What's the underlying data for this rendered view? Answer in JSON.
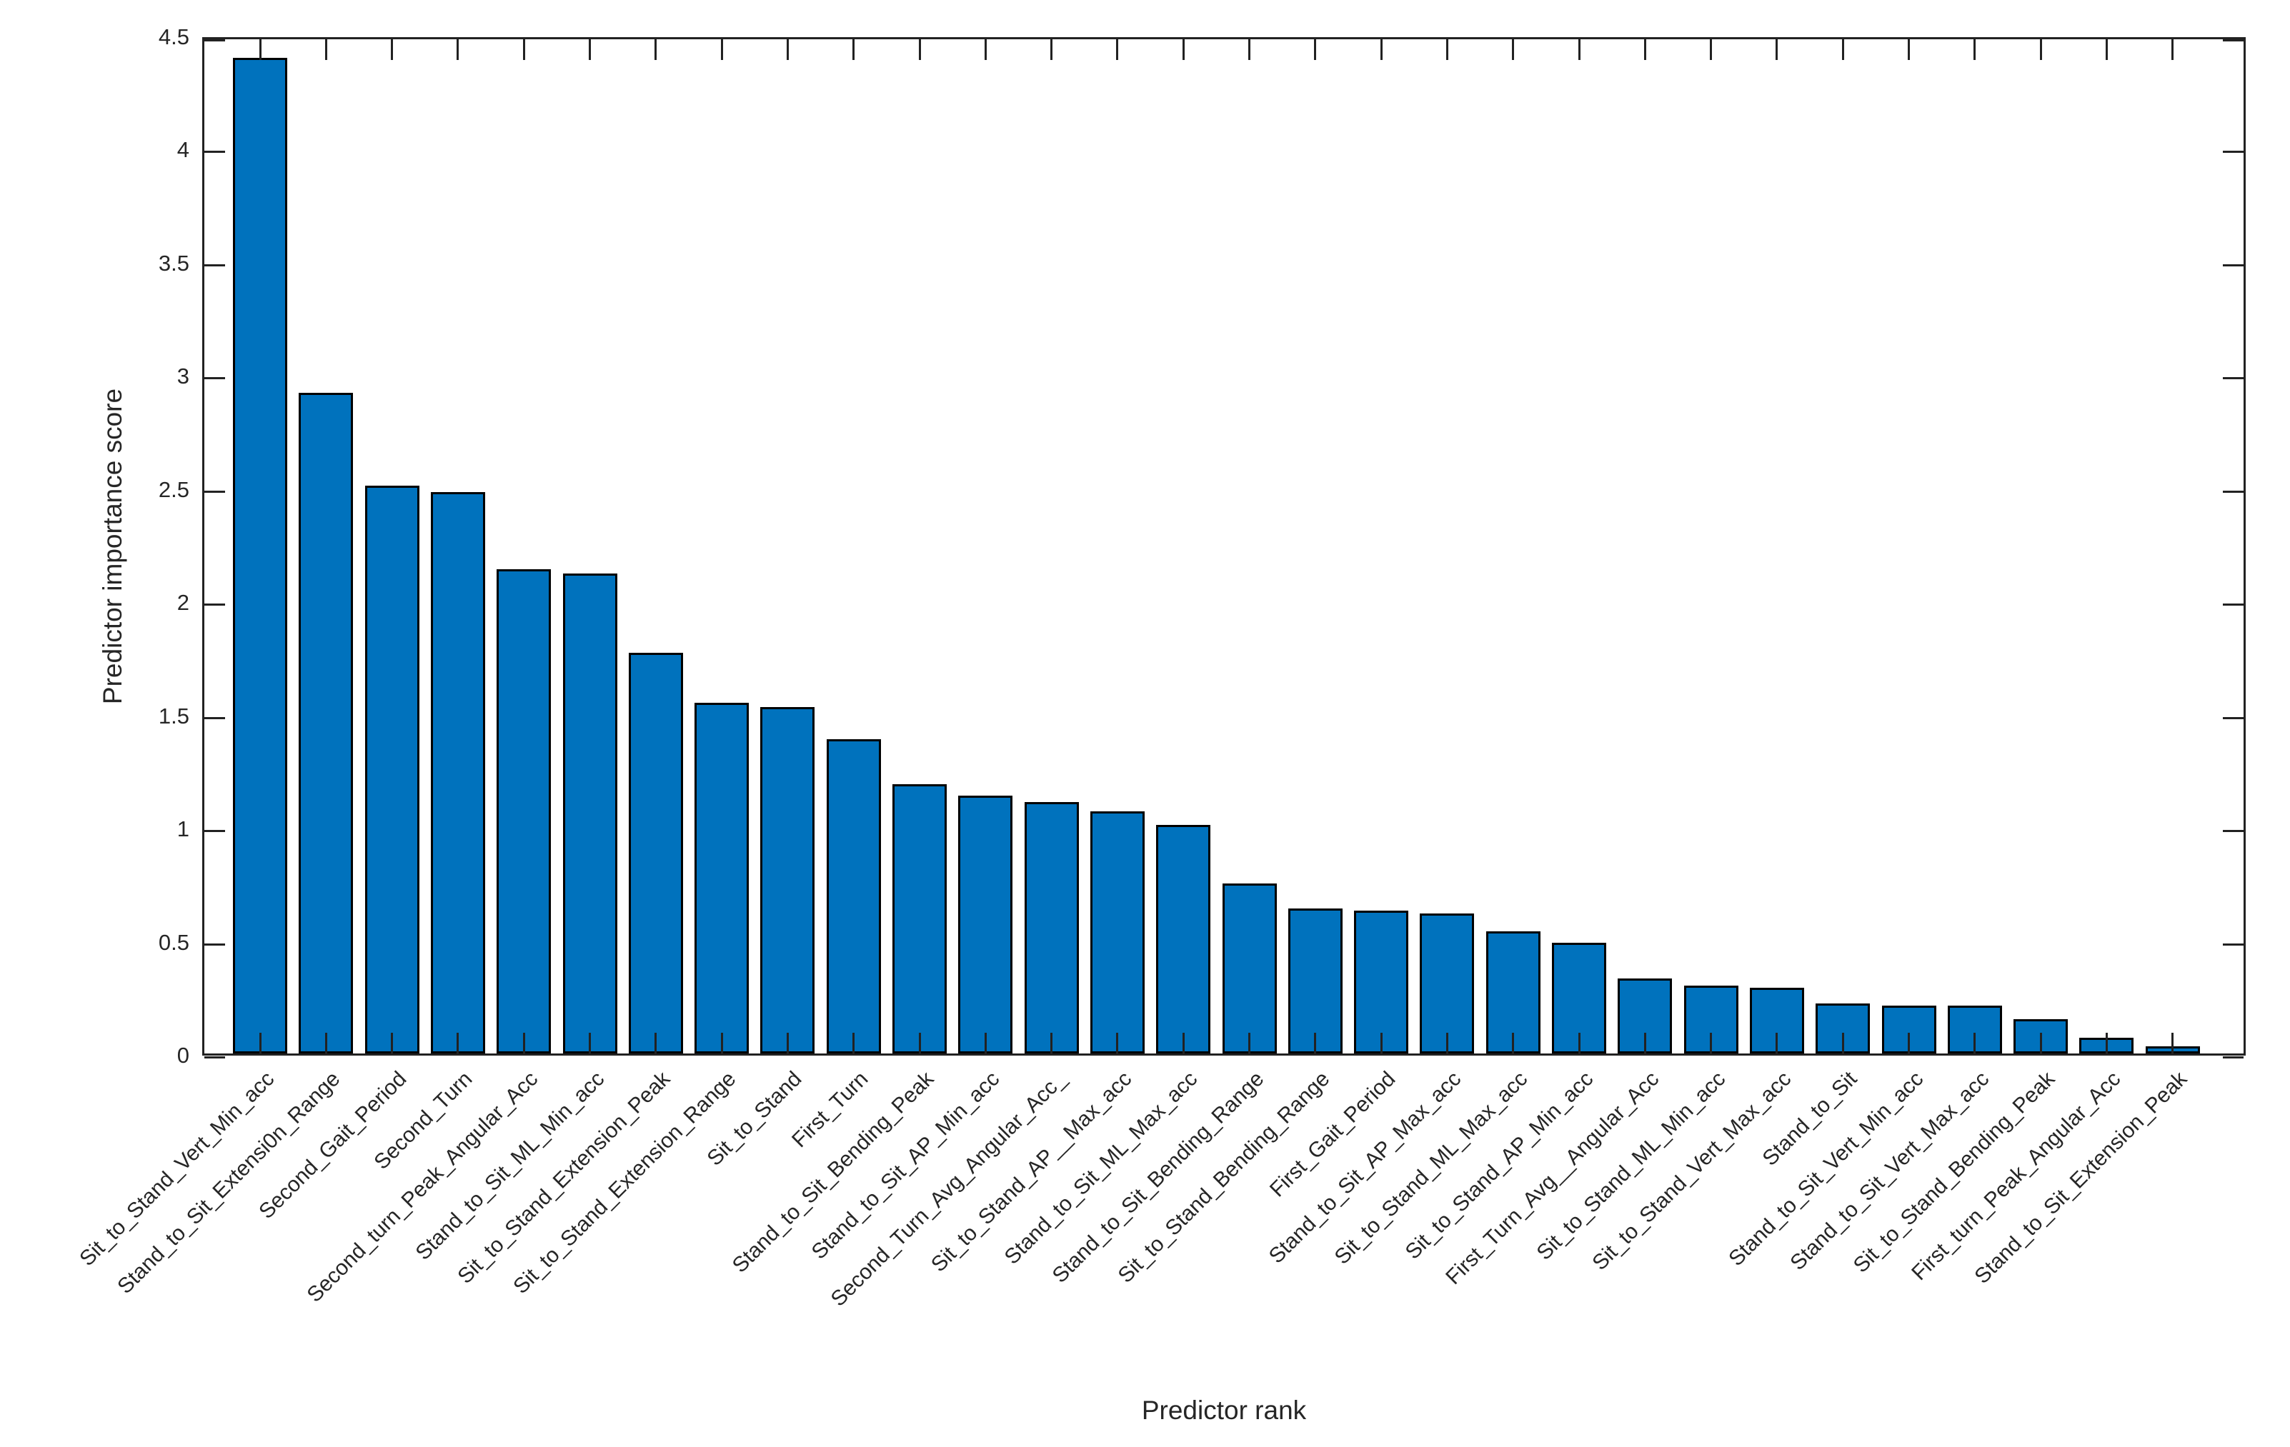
{
  "chart_data": {
    "type": "bar",
    "title": "",
    "xlabel": "Predictor rank",
    "ylabel": "Predictor importance score",
    "categories": [
      "Sit_to_Stand_Vert_Min_acc",
      "Stand_to_Sit_Extensi0n_Range",
      "Second_Gait_Period",
      "Second_Turn",
      "Second_turn_Peak_Angular_Acc",
      "Stand_to_Sit_ML_Min_acc",
      "Sit_to_Stand_Extension_Peak",
      "Sit_to_Stand_Extension_Range",
      "Sit_to_Stand",
      "First_Turn",
      "Stand_to_Sit_Bending_Peak",
      "Stand_to_Sit_AP_Min_acc",
      "Second_Turn_Avg_Angular_Acc_",
      "Sit_to_Stand_AP__Max_acc",
      "Stand_to_Sit_ML_Max_acc",
      "Stand_to_Sit_Bending_Range",
      "Sit_to_Stand_Bending_Range",
      "First_Gait_Period",
      "Stand_to_Sit_AP_Max_acc",
      "Sit_to_Stand_ML_Max_acc",
      "Sit_to_Stand_AP_Min_acc",
      "First_Turn_Avg__Angular_Acc",
      "Sit_to_Stand_ML_Min_acc",
      "Sit_to_Stand_Vert_Max_acc",
      "Stand_to_Sit",
      "Stand_to_Sit_Vert_Min_acc",
      "Stand_to_Sit_Vert_Max_acc",
      "Sit_to_Stand_Bending_Peak",
      "First_turn_Peak_Angular_Acc",
      "Stand_to_Sit_Extension_Peak"
    ],
    "values": [
      4.4,
      2.92,
      2.51,
      2.48,
      2.14,
      2.12,
      1.77,
      1.55,
      1.53,
      1.39,
      1.19,
      1.14,
      1.11,
      1.07,
      1.01,
      0.75,
      0.64,
      0.63,
      0.62,
      0.54,
      0.49,
      0.33,
      0.3,
      0.29,
      0.22,
      0.21,
      0.21,
      0.15,
      0.07,
      0.03
    ],
    "ylim": [
      0,
      4.5
    ],
    "ytick_labels": [
      "0",
      "0.5",
      "1",
      "1.5",
      "2",
      "2.5",
      "3",
      "3.5",
      "4",
      "4.5"
    ],
    "xtick_rotation_deg": 45,
    "grid": "off",
    "legend": "none",
    "box": "on",
    "tick_direction": "in",
    "bar_color": "#0072BD",
    "bar_edge_color": "#000000",
    "axis_color": "#222222",
    "text_color": "#262626",
    "background": "#ffffff"
  }
}
